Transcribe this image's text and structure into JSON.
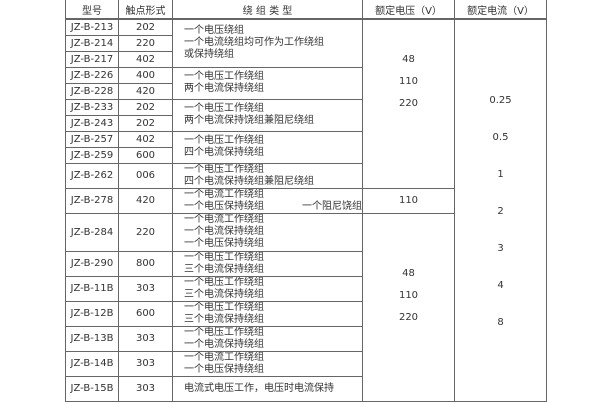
{
  "headers": {
    "model": "型号",
    "contact": "触点形式",
    "winding": "绕 组 类 型",
    "voltage": "额定电压（V）",
    "current": "额定电流（V）"
  },
  "rows": [
    {
      "model": "JZ-B-213",
      "contact": "202"
    },
    {
      "model": "JZ-B-214",
      "contact": "220"
    },
    {
      "model": "JZ-B-217",
      "contact": "402"
    },
    {
      "model": "JZ-B-226",
      "contact": "400"
    },
    {
      "model": "JZ-B-228",
      "contact": "420"
    },
    {
      "model": "JZ-B-233",
      "contact": "202"
    },
    {
      "model": "JZ-B-243",
      "contact": "202"
    },
    {
      "model": "JZ-B-257",
      "contact": "402"
    },
    {
      "model": "JZ-B-259",
      "contact": "600"
    },
    {
      "model": "JZ-B-262",
      "contact": "006"
    },
    {
      "model": "JZ-B-278",
      "contact": "420"
    },
    {
      "model": "JZ-B-284",
      "contact": "220"
    },
    {
      "model": "JZ-B-290",
      "contact": "800"
    },
    {
      "model": "JZ-B-11B",
      "contact": "303"
    },
    {
      "model": "JZ-B-12B",
      "contact": "600"
    },
    {
      "model": "JZ-B-13B",
      "contact": "303"
    },
    {
      "model": "JZ-B-14B",
      "contact": "303"
    },
    {
      "model": "JZ-B-15B",
      "contact": "303"
    }
  ],
  "windings": [
    [
      "一个电压绕组",
      "一个电流绕组均可作为工作绕组",
      "或保持绕组"
    ],
    [
      "一个电压工作绕组",
      "两个电流保持绕组"
    ],
    [
      "一个电压工作绕组",
      "两个电流保持饶组兼阻尼绕组"
    ],
    [
      "一个电压工作绕组",
      "四个电流保持绕组"
    ],
    [
      "一个电压工作绕组",
      "四个电流保持绕组兼阻尼绕组"
    ],
    [
      "一个电流工作绕组",
      "一个电压保持绕组",
      "一个阻尼饶组"
    ],
    [
      "一个电流工作绕组",
      "一个电流保持绕组",
      "一个电压保持绕组"
    ],
    [
      "一个电压工作绕组",
      "三个电流保持绕组"
    ],
    [
      "一个电压工作绕组",
      "三个电流保持绕组"
    ],
    [
      "一个电压工作绕组",
      "三个电流保持绕组"
    ],
    [
      "一个电压工作绕组",
      "一个电流保持绕组"
    ],
    [
      "一个电流工作绕组",
      "一个电压保持绕组"
    ],
    [
      "电流式电压工作，电压时电流保持"
    ]
  ],
  "voltage": {
    "group1": [
      "48",
      "110",
      "220"
    ],
    "group2": "110",
    "group3": [
      "48",
      "110",
      "220"
    ]
  },
  "current": [
    "0.25",
    "0.5",
    "1",
    "2",
    "3",
    "4",
    "8"
  ]
}
